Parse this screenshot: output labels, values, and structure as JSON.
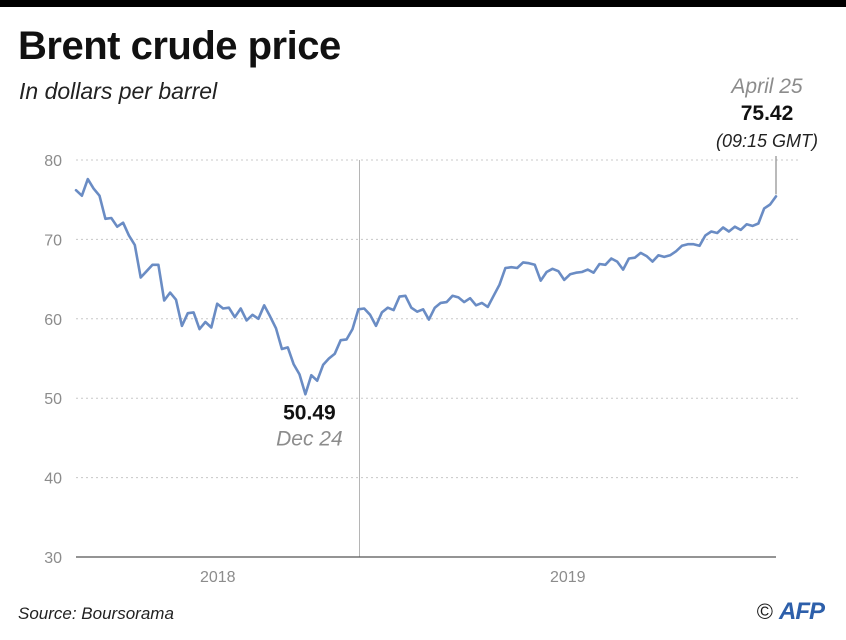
{
  "title": "Brent crude price",
  "subtitle": "In dollars per barrel",
  "source": "Source: Boursorama",
  "credit": {
    "symbol": "©",
    "logo": "AFP"
  },
  "colors": {
    "line": "#6a8cc4",
    "logo": "#2d5faa",
    "grid": "#c8c8c8",
    "axis": "#555555"
  },
  "chart_data": {
    "type": "line",
    "title": "Brent crude price",
    "ylabel": "In dollars per barrel",
    "ylim": [
      30,
      80
    ],
    "yticks": [
      30,
      40,
      50,
      60,
      70,
      80
    ],
    "xticks": [
      "2018",
      "2019"
    ],
    "x_index_range": [
      0,
      100
    ],
    "year_boundary_index": 40.5,
    "grid": "horizontal dotted",
    "series": [
      {
        "values": [
          76.2,
          75.5,
          77.6,
          76.4,
          75.5,
          72.6,
          72.7,
          71.6,
          72.1,
          70.5,
          69.3,
          65.2,
          66.0,
          66.8,
          66.8,
          62.3,
          63.3,
          62.4,
          59.1,
          60.7,
          60.8,
          58.7,
          59.6,
          58.9,
          61.9,
          61.3,
          61.4,
          60.2,
          61.3,
          59.8,
          60.5,
          60.0,
          61.7,
          60.3,
          58.8,
          56.2,
          56.4,
          54.3,
          53.0,
          50.49,
          52.9,
          52.2,
          54.2,
          55.0,
          55.6,
          57.3,
          57.4,
          58.7,
          61.2,
          61.3,
          60.5,
          59.1,
          60.8,
          61.4,
          61.1,
          62.8,
          62.9,
          61.4,
          60.9,
          61.2,
          59.9,
          61.4,
          62.0,
          62.1,
          62.9,
          62.7,
          62.1,
          62.6,
          61.7,
          62.0,
          61.5,
          62.9,
          64.3,
          66.4,
          66.5,
          66.4,
          67.1,
          67.0,
          66.8,
          64.8,
          65.9,
          66.3,
          66.0,
          64.9,
          65.6,
          65.8,
          65.9,
          66.2,
          65.8,
          66.9,
          66.8,
          67.6,
          67.2,
          66.2,
          67.6,
          67.7,
          68.3,
          67.9,
          67.2,
          68.0,
          67.8,
          68.0,
          68.5,
          69.2,
          69.4,
          69.4,
          69.2,
          70.5,
          71.0,
          70.8,
          71.5,
          71.0,
          71.6,
          71.2,
          71.9,
          71.7,
          72.0,
          73.9,
          74.4,
          75.42
        ]
      }
    ],
    "annotations": [
      {
        "value": "50.49",
        "date": "Dec 24"
      },
      {
        "value": "75.42",
        "date": "April 25",
        "time": "(09:15 GMT)"
      }
    ]
  }
}
